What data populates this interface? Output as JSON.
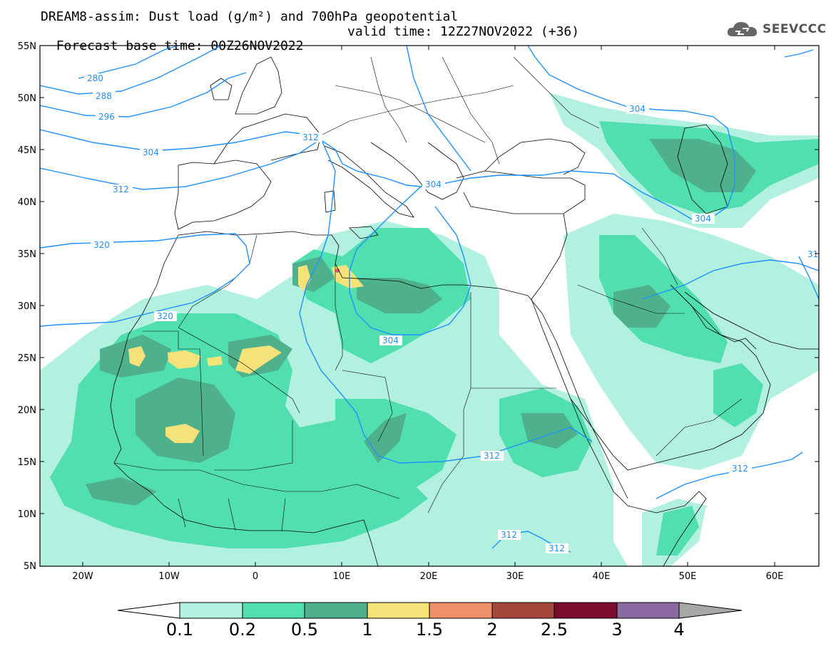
{
  "title": {
    "line1": "DREAM8-assim: Dust load (g/m²) and 700hPa geopotential",
    "base": "Forecast base time: 00Z26NOV2022",
    "valid": "valid time: 12Z27NOV2022 (+36)"
  },
  "logo": {
    "text": "SEEVCCC",
    "icon": "cloud-icon"
  },
  "axes": {
    "y_ticks": [
      "55N",
      "50N",
      "45N",
      "40N",
      "35N",
      "30N",
      "25N",
      "20N",
      "15N",
      "10N",
      "5N"
    ],
    "x_ticks": [
      "20W",
      "10W",
      "0",
      "10E",
      "20E",
      "30E",
      "40E",
      "50E",
      "60E"
    ],
    "lat_range": [
      5,
      55
    ],
    "lon_range": [
      -25,
      65
    ]
  },
  "colorbar": {
    "labels": [
      "0.1",
      "0.2",
      "0.5",
      "1",
      "1.5",
      "2",
      "2.5",
      "3",
      "4"
    ],
    "colors": [
      "#ffffff",
      "#b2f0e0",
      "#52dfb0",
      "#4fb18b",
      "#f5e37a",
      "#f0916a",
      "#a5473a",
      "#7a0c2e",
      "#8a6aa0",
      "#a8a8a8"
    ]
  },
  "contours": {
    "color": "#1e90ff",
    "labels": [
      "280",
      "288",
      "296",
      "304",
      "312",
      "320",
      "312",
      "304",
      "304",
      "304",
      "304",
      "320",
      "312",
      "312",
      "312",
      "312",
      "31"
    ]
  },
  "dust_colors": {
    "light": "#b2f0e0",
    "medium": "#52dfb0",
    "dark": "#4fb18b",
    "yellow": "#f5e37a",
    "red": "#e0606a"
  }
}
